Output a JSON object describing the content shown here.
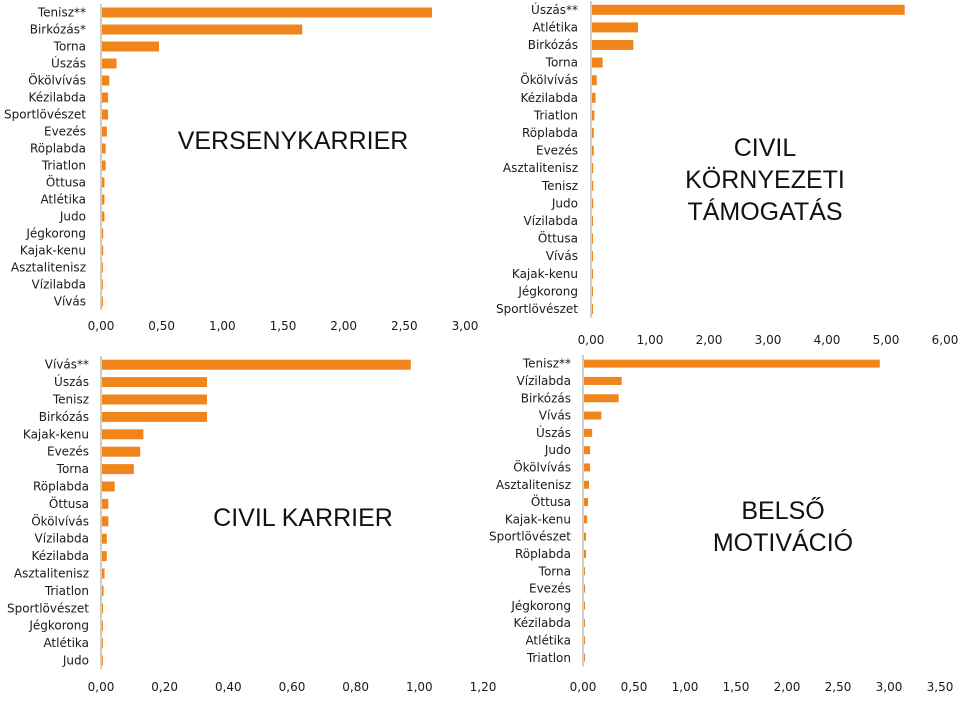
{
  "colors": {
    "bar": "#f0861b",
    "axis": "#9a9a9a",
    "text": "#1a1a1a"
  },
  "chart_data": [
    {
      "type": "bar",
      "orientation": "horizontal",
      "title": [
        "VERSENYKARRIER"
      ],
      "categories": [
        "Tenisz**",
        "Birkózás*",
        "Torna",
        "Úszás",
        "Ökölvívás",
        "Kézilabda",
        "Sportlövészet",
        "Evezés",
        "Röplabda",
        "Triatlon",
        "Öttusa",
        "Atlétika",
        "Judo",
        "Jégkorong",
        "Kajak-kenu",
        "Asztalitenisz",
        "Vízilabda",
        "Vívás"
      ],
      "values": [
        2.72,
        1.65,
        0.47,
        0.12,
        0.06,
        0.05,
        0.05,
        0.04,
        0.03,
        0.03,
        0.02,
        0.02,
        0.02,
        0.01,
        0.01,
        0.005,
        0.005,
        0.003
      ],
      "xlim": [
        0,
        3
      ],
      "tick_labels": [
        "0,00",
        "0,50",
        "1,00",
        "1,50",
        "2,00",
        "2,50",
        "3,00"
      ]
    },
    {
      "type": "bar",
      "orientation": "horizontal",
      "title": [
        "CIVIL",
        "KÖRNYEZETI",
        "TÁMOGATÁS"
      ],
      "categories": [
        "Úszás**",
        "Atlétika",
        "Birkózás",
        "Torna",
        "Ökölvívás",
        "Kézilabda",
        "Triatlon",
        "Röplabda",
        "Evezés",
        "Asztalitenisz",
        "Tenisz",
        "Judo",
        "Vízilabda",
        "Öttusa",
        "Vívás",
        "Kajak-kenu",
        "Jégkorong",
        "Sportlövészet"
      ],
      "values": [
        5.3,
        0.78,
        0.7,
        0.18,
        0.08,
        0.06,
        0.04,
        0.03,
        0.03,
        0.02,
        0.02,
        0.02,
        0.015,
        0.01,
        0.01,
        0.008,
        0.005,
        0.003
      ],
      "xlim": [
        0,
        6
      ],
      "tick_labels": [
        "0,00",
        "1,00",
        "2,00",
        "3,00",
        "4,00",
        "5,00",
        "6,00"
      ]
    },
    {
      "type": "bar",
      "orientation": "horizontal",
      "title": [
        "CIVIL KARRIER"
      ],
      "categories": [
        "Vívás**",
        "Úszás",
        "Tenisz",
        "Birkózás",
        "Kajak-kenu",
        "Evezés",
        "Torna",
        "Röplabda",
        "Öttusa",
        "Ökölvívás",
        "Vízilabda",
        "Kézilabda",
        "Asztalitenisz",
        "Triatlon",
        "Sportlövészet",
        "Jégkorong",
        "Atlétika",
        "Judo"
      ],
      "values": [
        0.97,
        0.33,
        0.33,
        0.33,
        0.13,
        0.12,
        0.1,
        0.04,
        0.02,
        0.02,
        0.015,
        0.015,
        0.008,
        0.005,
        0.003,
        0.002,
        0.001,
        0.001
      ],
      "xlim": [
        0,
        1.2
      ],
      "tick_labels": [
        "0,00",
        "0,20",
        "0,40",
        "0,60",
        "0,80",
        "1,00",
        "1,20"
      ]
    },
    {
      "type": "bar",
      "orientation": "horizontal",
      "title": [
        "BELSŐ",
        "MOTIVÁCIÓ"
      ],
      "categories": [
        "Tenisz**",
        "Vízilabda",
        "Birkózás",
        "Vívás",
        "Úszás",
        "Judo",
        "Ökölvívás",
        "Asztalitenisz",
        "Öttusa",
        "Kajak-kenu",
        "Sportlövészet",
        "Röplabda",
        "Torna",
        "Evezés",
        "Jégkorong",
        "Kézilabda",
        "Atlétika",
        "Triatlon"
      ],
      "values": [
        2.9,
        0.37,
        0.34,
        0.17,
        0.08,
        0.06,
        0.06,
        0.05,
        0.04,
        0.03,
        0.02,
        0.02,
        0.01,
        0.01,
        0.005,
        0.005,
        0.003,
        0.002
      ],
      "xlim": [
        0,
        3.5
      ],
      "tick_labels": [
        "0,00",
        "0,50",
        "1,00",
        "1,50",
        "2,00",
        "2,50",
        "3,00",
        "3,50"
      ]
    }
  ]
}
